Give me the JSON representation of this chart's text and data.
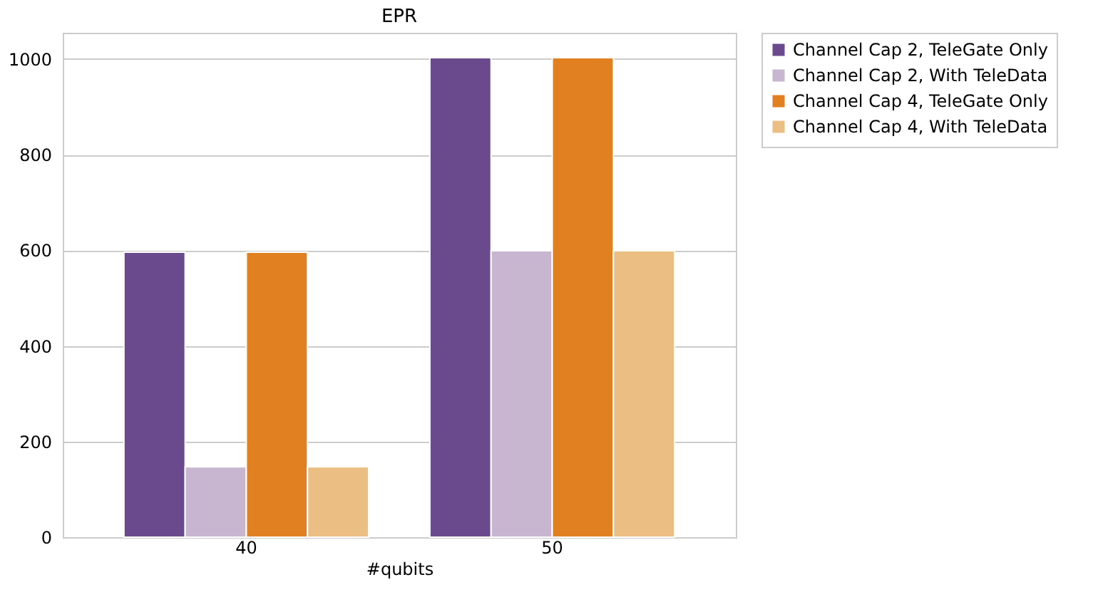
{
  "chart_data": {
    "type": "bar",
    "title": "EPR",
    "xlabel": "#qubits",
    "categories": [
      "40",
      "50"
    ],
    "series": [
      {
        "name": "Channel Cap 2, TeleGate Only",
        "color": "#6a4a8c",
        "values": [
          596,
          1003
        ]
      },
      {
        "name": "Channel Cap 2, With TeleData",
        "color": "#c8b6d1",
        "values": [
          147,
          599
        ]
      },
      {
        "name": "Channel Cap 4, TeleGate Only",
        "color": "#e08020",
        "values": [
          596,
          1003
        ]
      },
      {
        "name": "Channel Cap 4, With TeleData",
        "color": "#ebbe83",
        "values": [
          147,
          599
        ]
      }
    ],
    "ylim": [
      0,
      1055
    ],
    "yticks": [
      0,
      200,
      400,
      600,
      800,
      1000
    ],
    "grid": "y",
    "legend": "top right"
  }
}
